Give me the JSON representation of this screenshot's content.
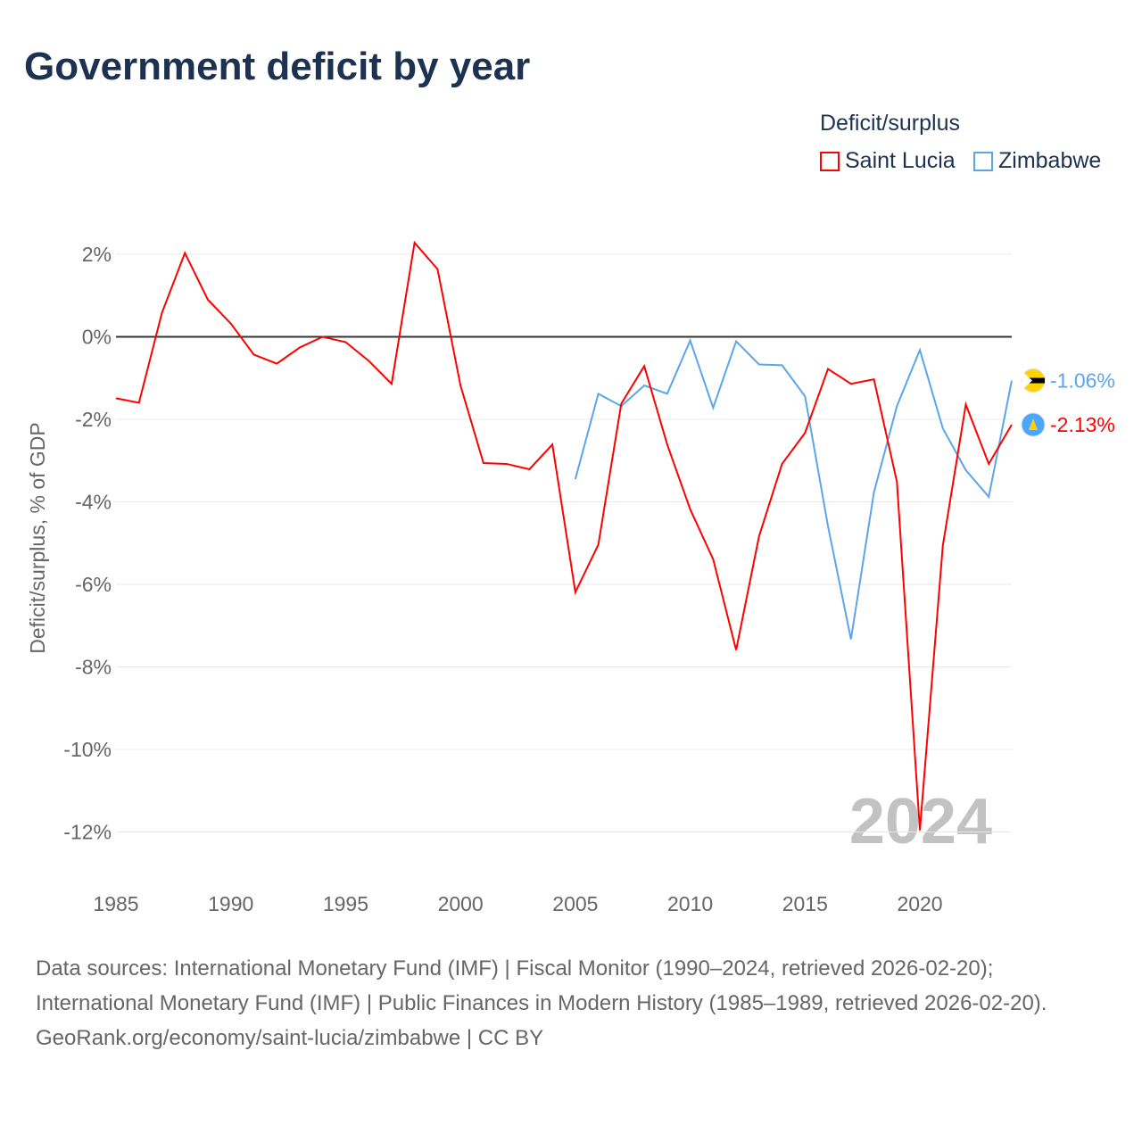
{
  "title": "Government deficit by year",
  "legend": {
    "title": "Deficit/surplus",
    "items": [
      {
        "name": "Saint Lucia",
        "color": "#ff0000"
      },
      {
        "name": "Zimbabwe",
        "color": "#5aa5ec"
      }
    ]
  },
  "chart_data": {
    "type": "line",
    "title": "Government deficit by year",
    "xlabel": "",
    "ylabel": "Deficit/surplus, % of GDP",
    "xlim": [
      1985,
      2024
    ],
    "ylim": [
      -13.2,
      3
    ],
    "x_ticks": [
      1985,
      1990,
      1995,
      2000,
      2005,
      2010,
      2015,
      2020
    ],
    "x_tick_labels": [
      "1985",
      "1990",
      "1995",
      "2000",
      "2005",
      "2010",
      "2015",
      "2020"
    ],
    "y_ticks": [
      2,
      0,
      -2,
      -4,
      -6,
      -8,
      -10,
      -12
    ],
    "y_tick_labels": [
      "2%",
      "0%",
      "-2%",
      "-4%",
      "-6%",
      "-8%",
      "-10%",
      "-12%"
    ],
    "grid": true,
    "legend_position": "top-right",
    "year_watermark": "2024",
    "series": [
      {
        "name": "Saint Lucia",
        "color": "#ff0000",
        "end_label": "-2.13%",
        "x": [
          1985,
          1986,
          1987,
          1988,
          1989,
          1990,
          1991,
          1992,
          1993,
          1994,
          1995,
          1996,
          1997,
          1998,
          1999,
          2000,
          2001,
          2002,
          2003,
          2004,
          2005,
          2006,
          2007,
          2008,
          2009,
          2010,
          2011,
          2012,
          2013,
          2014,
          2015,
          2016,
          2017,
          2018,
          2019,
          2020,
          2021,
          2022,
          2023,
          2024
        ],
        "y": [
          -1.49,
          -1.6,
          0.58,
          2.03,
          0.9,
          0.32,
          -0.43,
          -0.65,
          -0.26,
          0,
          -0.13,
          -0.58,
          -1.14,
          2.28,
          1.64,
          -1.18,
          -3.06,
          -3.08,
          -3.21,
          -2.61,
          -6.19,
          -5.04,
          -1.62,
          -0.71,
          -2.61,
          -4.18,
          -5.39,
          -7.59,
          -4.83,
          -3.08,
          -2.33,
          -0.78,
          -1.14,
          -1.03,
          -3.51,
          -11.96,
          -5.06,
          -1.64,
          -3.08,
          -2.13
        ]
      },
      {
        "name": "Zimbabwe",
        "color": "#5aa5ec",
        "end_label": "-1.06%",
        "x": [
          2005,
          2006,
          2007,
          2008,
          2009,
          2010,
          2011,
          2012,
          2013,
          2014,
          2015,
          2016,
          2017,
          2018,
          2019,
          2020,
          2021,
          2022,
          2023,
          2024
        ],
        "y": [
          -3.45,
          -1.38,
          -1.68,
          -1.18,
          -1.38,
          -0.09,
          -1.72,
          -0.11,
          -0.67,
          -0.69,
          -1.44,
          -4.59,
          -7.33,
          -3.77,
          -1.68,
          -0.32,
          -2.22,
          -3.23,
          -3.88,
          -1.06
        ]
      }
    ]
  },
  "footer": {
    "sources": "Data sources: International Monetary Fund (IMF) | Fiscal Monitor (1990–2024, retrieved 2026-02-20); International Monetary Fund (IMF) | Public Finances in Modern History (1985–1989, retrieved 2026-02-20).",
    "link": "GeoRank.org/economy/saint-lucia/zimbabwe | CC BY"
  }
}
